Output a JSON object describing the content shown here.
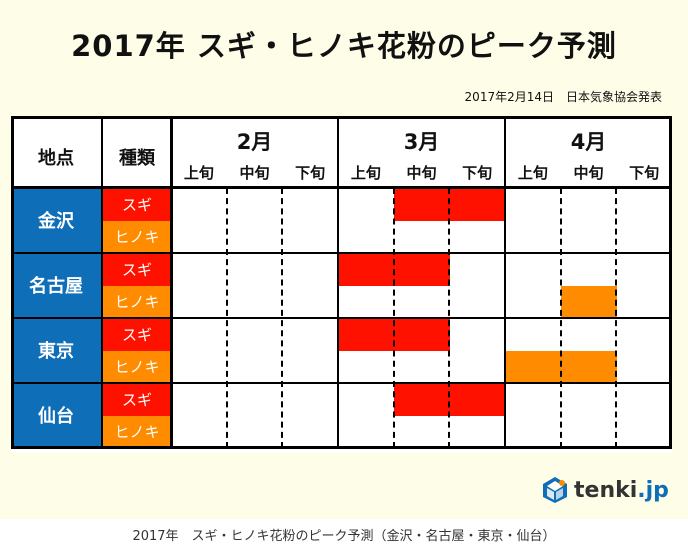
{
  "title": "2017年 スギ・ヒノキ花粉のピーク予測",
  "source": "2017年2月14日　日本気象協会発表",
  "caption": "2017年　スギ・ヒノキ花粉のピーク予測（金沢・名古屋・東京・仙台）",
  "logo": {
    "name": "tenki",
    "suffix": ".jp"
  },
  "colors": {
    "city": "#0f6eb8",
    "sugi": "#ff1100",
    "hinoki": "#ff8c00"
  },
  "chart_data": {
    "type": "table",
    "title": "2017年 スギ・ヒノキ花粉のピーク予測",
    "header": {
      "location": "地点",
      "type": "種類"
    },
    "months": [
      "2月",
      "3月",
      "4月"
    ],
    "dekads": [
      "上旬",
      "中旬",
      "下旬"
    ],
    "cities": [
      {
        "name": "金沢",
        "rows": [
          {
            "plant": "スギ",
            "peak": [
              0,
              0,
              0,
              0,
              1,
              1,
              0,
              0,
              0
            ]
          },
          {
            "plant": "ヒノキ",
            "peak": [
              0,
              0,
              0,
              0,
              0,
              0,
              0,
              0,
              0
            ]
          }
        ]
      },
      {
        "name": "名古屋",
        "rows": [
          {
            "plant": "スギ",
            "peak": [
              0,
              0,
              0,
              1,
              1,
              0,
              0,
              0,
              0
            ]
          },
          {
            "plant": "ヒノキ",
            "peak": [
              0,
              0,
              0,
              0,
              0,
              0,
              0,
              1,
              0
            ]
          }
        ]
      },
      {
        "name": "東京",
        "rows": [
          {
            "plant": "スギ",
            "peak": [
              0,
              0,
              0,
              1,
              1,
              0,
              0,
              0,
              0
            ]
          },
          {
            "plant": "ヒノキ",
            "peak": [
              0,
              0,
              0,
              0,
              0,
              0,
              1,
              1,
              0
            ]
          }
        ]
      },
      {
        "name": "仙台",
        "rows": [
          {
            "plant": "スギ",
            "peak": [
              0,
              0,
              0,
              0,
              1,
              1,
              0,
              0,
              0
            ]
          },
          {
            "plant": "ヒノキ",
            "peak": [
              0,
              0,
              0,
              0,
              0,
              0,
              0,
              0,
              0
            ]
          }
        ]
      }
    ]
  }
}
